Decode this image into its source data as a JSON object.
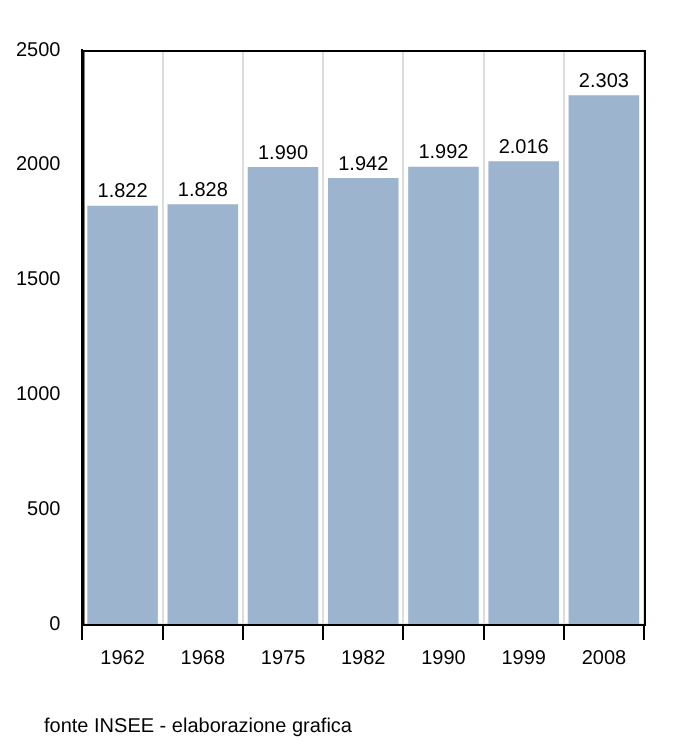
{
  "chart_data": {
    "type": "bar",
    "categories": [
      "1962",
      "1968",
      "1975",
      "1982",
      "1990",
      "1999",
      "2008"
    ],
    "values": [
      1822,
      1828,
      1990,
      1942,
      1992,
      2016,
      2303
    ],
    "value_labels": [
      "1.822",
      "1.828",
      "1.990",
      "1.942",
      "1.992",
      "2.016",
      "2.303"
    ],
    "color": "#9db4cf",
    "ylim": [
      0,
      2500
    ],
    "yticks": [
      0,
      500,
      1000,
      1500,
      2000,
      2500
    ],
    "grid": "x",
    "legend": false,
    "annotations": [
      "fonte INSEE - elaborazione grafica"
    ]
  }
}
